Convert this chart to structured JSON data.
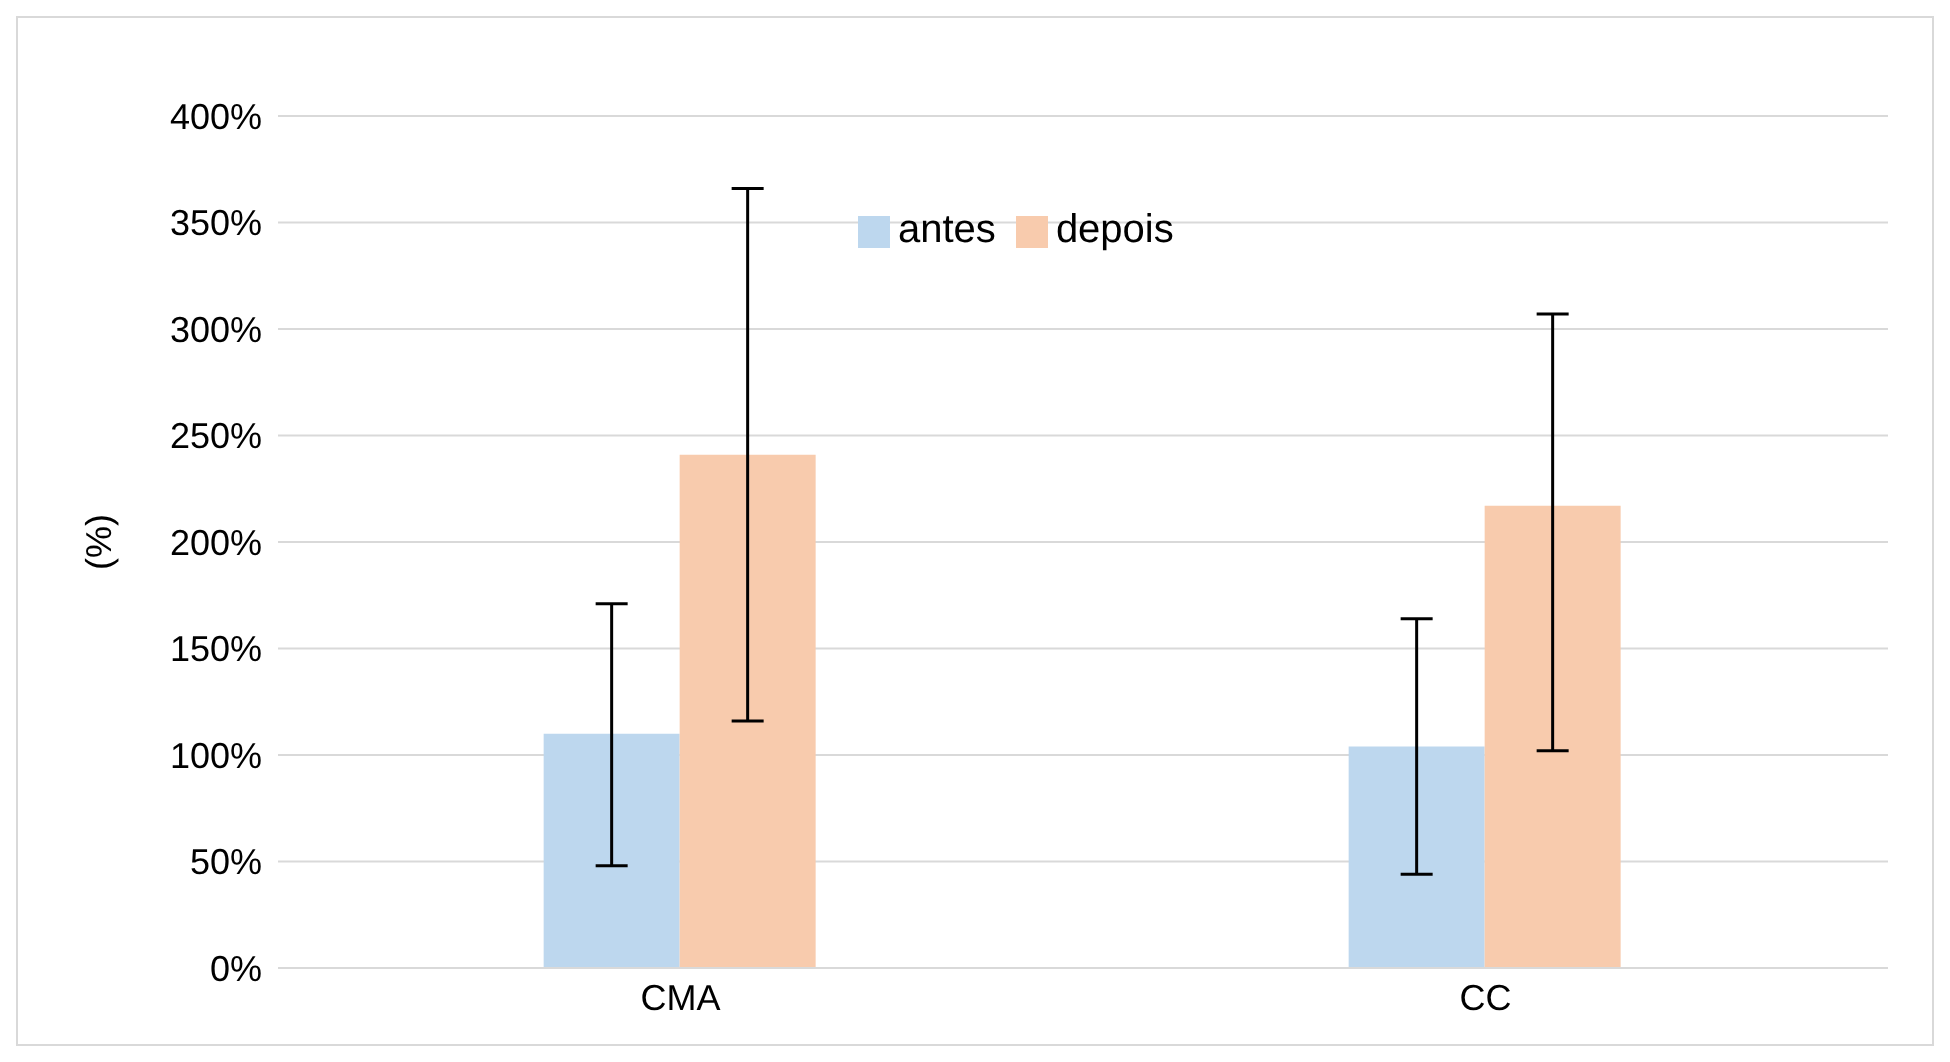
{
  "chart_data": {
    "type": "bar",
    "ylabel": "(%)",
    "categories": [
      "CMA",
      "CC"
    ],
    "series": [
      {
        "name": "antes",
        "color": "#bdd7ee",
        "values": [
          110,
          104
        ],
        "errors": [
          [
            48,
            171
          ],
          [
            44,
            164
          ]
        ]
      },
      {
        "name": "depois",
        "color": "#f8cbad",
        "values": [
          241,
          217
        ],
        "errors": [
          [
            116,
            366
          ],
          [
            102,
            307
          ]
        ]
      }
    ],
    "ylim": [
      0,
      400
    ],
    "yticks": [
      {
        "value": 0,
        "label": "0%"
      },
      {
        "value": 50,
        "label": "50%"
      },
      {
        "value": 100,
        "label": "100%"
      },
      {
        "value": 150,
        "label": "150%"
      },
      {
        "value": 200,
        "label": "200%"
      },
      {
        "value": 250,
        "label": "250%"
      },
      {
        "value": 300,
        "label": "300%"
      },
      {
        "value": 350,
        "label": "350%"
      },
      {
        "value": 400,
        "label": "400%"
      }
    ],
    "grid": "y",
    "legend": "top"
  }
}
